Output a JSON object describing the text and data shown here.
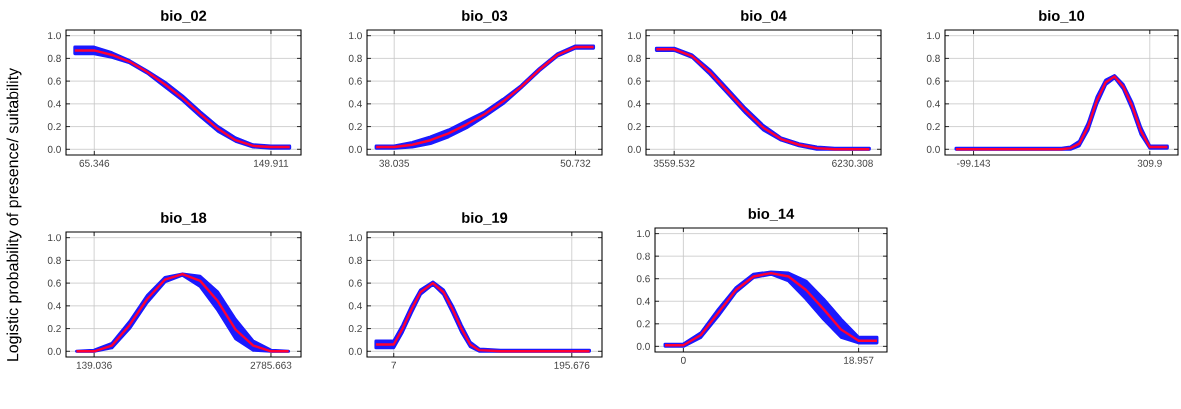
{
  "chart_data": [
    {
      "type": "line",
      "title": "bio_02",
      "ylabel": "Logistic probability of presence/ suitability",
      "xlim": [
        51.8,
        164.3
      ],
      "xticks": [
        65.346,
        149.911
      ],
      "ylim": [
        -0.05,
        1.05
      ],
      "yticks": [
        {
          "value": 0,
          "label": "0.0"
        },
        {
          "value": 0.2,
          "label": "0.2"
        },
        {
          "value": 0.4,
          "label": "0.4"
        },
        {
          "value": 0.6,
          "label": "0.6"
        },
        {
          "value": 0.8,
          "label": "0.8"
        },
        {
          "value": 1,
          "label": "1.0"
        }
      ],
      "grid": true,
      "series": [
        {
          "color": "#ff0033",
          "x": [
            56.0,
            65.3,
            73.8,
            82.3,
            90.7,
            99.2,
            107.6,
            116.1,
            124.5,
            133.0,
            141.4,
            149.9,
            158.9
          ],
          "values": [
            0.87,
            0.87,
            0.83,
            0.77,
            0.68,
            0.57,
            0.45,
            0.31,
            0.18,
            0.08,
            0.03,
            0.02,
            0.02
          ],
          "lower": [
            0.84,
            0.84,
            0.81,
            0.76,
            0.67,
            0.55,
            0.43,
            0.29,
            0.16,
            0.07,
            0.02,
            0.01,
            0.01
          ],
          "upper": [
            0.9,
            0.9,
            0.85,
            0.78,
            0.69,
            0.59,
            0.47,
            0.33,
            0.2,
            0.1,
            0.04,
            0.03,
            0.03
          ]
        }
      ]
    },
    {
      "type": "line",
      "title": "bio_03",
      "xlim": [
        36.13,
        52.59
      ],
      "xticks": [
        38.035,
        50.732
      ],
      "ylim": [
        -0.05,
        1.05
      ],
      "yticks": [
        {
          "value": 0,
          "label": "0.0"
        },
        {
          "value": 0.2,
          "label": "0.2"
        },
        {
          "value": 0.4,
          "label": "0.4"
        },
        {
          "value": 0.6,
          "label": "0.6"
        },
        {
          "value": 0.8,
          "label": "0.8"
        },
        {
          "value": 1,
          "label": "1.0"
        }
      ],
      "grid": true,
      "series": [
        {
          "color": "#ff0033",
          "x": [
            36.765,
            38.035,
            39.305,
            40.574,
            41.844,
            43.114,
            44.384,
            45.653,
            46.923,
            48.193,
            49.462,
            50.732,
            52.002
          ],
          "values": [
            0.02,
            0.02,
            0.04,
            0.08,
            0.14,
            0.22,
            0.31,
            0.42,
            0.55,
            0.7,
            0.83,
            0.9,
            0.9
          ],
          "lower": [
            0.01,
            0.01,
            0.02,
            0.05,
            0.11,
            0.19,
            0.29,
            0.4,
            0.54,
            0.69,
            0.82,
            0.89,
            0.89
          ],
          "upper": [
            0.03,
            0.03,
            0.06,
            0.11,
            0.17,
            0.25,
            0.33,
            0.44,
            0.56,
            0.71,
            0.84,
            0.91,
            0.91
          ]
        }
      ]
    },
    {
      "type": "line",
      "title": "bio_04",
      "xlim": [
        3137.5,
        6657.6
      ],
      "xticks": [
        3559.532,
        6230.308
      ],
      "ylim": [
        -0.05,
        1.05
      ],
      "yticks": [
        {
          "value": 0,
          "label": "0.0"
        },
        {
          "value": 0.2,
          "label": "0.2"
        },
        {
          "value": 0.4,
          "label": "0.4"
        },
        {
          "value": 0.6,
          "label": "0.6"
        },
        {
          "value": 0.8,
          "label": "0.8"
        },
        {
          "value": 1,
          "label": "1.0"
        }
      ],
      "grid": true,
      "series": [
        {
          "color": "#ff0033",
          "x": [
            3292.5,
            3559.5,
            3826.6,
            4093.7,
            4360.8,
            4627.8,
            4894.9,
            5162.0,
            5429.1,
            5696.2,
            5963.2,
            6230.3,
            6484.0
          ],
          "values": [
            0.88,
            0.88,
            0.82,
            0.68,
            0.51,
            0.34,
            0.19,
            0.09,
            0.04,
            0.01,
            0,
            0,
            0
          ],
          "lower": [
            0.87,
            0.87,
            0.81,
            0.66,
            0.49,
            0.32,
            0.17,
            0.08,
            0.03,
            0,
            0,
            0,
            0
          ],
          "upper": [
            0.89,
            0.89,
            0.83,
            0.7,
            0.53,
            0.36,
            0.21,
            0.1,
            0.05,
            0.02,
            0.01,
            0.01,
            0.01
          ]
        }
      ]
    },
    {
      "type": "line",
      "title": "bio_10",
      "xlim": [
        -165.4,
        375.4
      ],
      "xticks": [
        -99.143,
        309.9
      ],
      "ylim": [
        -0.05,
        1.05
      ],
      "yticks": [
        {
          "value": 0,
          "label": "0.0"
        },
        {
          "value": 0.2,
          "label": "0.2"
        },
        {
          "value": 0.4,
          "label": "0.4"
        },
        {
          "value": 0.6,
          "label": "0.6"
        },
        {
          "value": 0.8,
          "label": "0.8"
        },
        {
          "value": 1,
          "label": "1.0"
        }
      ],
      "grid": true,
      "series": [
        {
          "color": "#ff0033",
          "x": [
            -140.0,
            -17.3,
            105.4,
            125.8,
            146.3,
            166.7,
            187.2,
            207.6,
            228.1,
            248.5,
            269.0,
            289.4,
            309.9,
            350.8
          ],
          "values": [
            0,
            0,
            0,
            0.01,
            0.05,
            0.2,
            0.43,
            0.59,
            0.64,
            0.55,
            0.38,
            0.16,
            0.02,
            0.02
          ],
          "lower": [
            0,
            0,
            0,
            0,
            0.03,
            0.17,
            0.4,
            0.57,
            0.63,
            0.53,
            0.35,
            0.13,
            0.01,
            0.01
          ],
          "upper": [
            0.01,
            0.01,
            0.01,
            0.02,
            0.07,
            0.23,
            0.46,
            0.61,
            0.65,
            0.57,
            0.41,
            0.19,
            0.03,
            0.03
          ]
        }
      ]
    },
    {
      "type": "line",
      "title": "bio_18",
      "xlim": [
        -281.8,
        3235.6
      ],
      "xticks": [
        139.036,
        2785.663
      ],
      "ylim": [
        -0.05,
        1.05
      ],
      "yticks": [
        {
          "value": 0,
          "label": "0.0"
        },
        {
          "value": 0.2,
          "label": "0.2"
        },
        {
          "value": 0.4,
          "label": "0.4"
        },
        {
          "value": 0.6,
          "label": "0.6"
        },
        {
          "value": 0.8,
          "label": "0.8"
        },
        {
          "value": 1,
          "label": "1.0"
        }
      ],
      "grid": true,
      "series": [
        {
          "color": "#ff0033",
          "x": [
            -125.6,
            139.0,
            403.7,
            668.4,
            933.0,
            1197.7,
            1462.3,
            1727.0,
            1991.7,
            2256.3,
            2521.0,
            2785.7,
            3050.3
          ],
          "values": [
            0,
            0,
            0.05,
            0.23,
            0.46,
            0.63,
            0.68,
            0.62,
            0.44,
            0.19,
            0.05,
            0,
            0
          ],
          "lower": [
            0,
            0,
            0.03,
            0.2,
            0.43,
            0.61,
            0.67,
            0.57,
            0.36,
            0.11,
            0.01,
            0,
            0
          ],
          "upper": [
            0,
            0.01,
            0.07,
            0.26,
            0.49,
            0.65,
            0.68,
            0.66,
            0.52,
            0.28,
            0.09,
            0.01,
            0
          ]
        }
      ]
    },
    {
      "type": "line",
      "title": "bio_19",
      "xlim": [
        -21.3,
        227.7
      ],
      "xticks": [
        7,
        195.676
      ],
      "ylim": [
        -0.05,
        1.05
      ],
      "yticks": [
        {
          "value": 0,
          "label": "0.0"
        },
        {
          "value": 0.2,
          "label": "0.2"
        },
        {
          "value": 0.4,
          "label": "0.4"
        },
        {
          "value": 0.6,
          "label": "0.6"
        },
        {
          "value": 0.8,
          "label": "0.8"
        },
        {
          "value": 1,
          "label": "1.0"
        }
      ],
      "grid": true,
      "series": [
        {
          "color": "#ff0033",
          "x": [
            -11.9,
            7,
            16.4,
            25.9,
            35.3,
            48.5,
            59.8,
            69.3,
            78.7,
            88.1,
            97.6,
            120.2,
            157.9,
            195.7,
            214.5
          ],
          "values": [
            0.06,
            0.06,
            0.2,
            0.37,
            0.52,
            0.6,
            0.52,
            0.37,
            0.2,
            0.06,
            0.01,
            0,
            0,
            0,
            0
          ],
          "lower": [
            0.03,
            0.03,
            0.17,
            0.34,
            0.5,
            0.59,
            0.5,
            0.34,
            0.17,
            0.04,
            0,
            0,
            0,
            0,
            0
          ],
          "upper": [
            0.09,
            0.09,
            0.23,
            0.4,
            0.54,
            0.61,
            0.54,
            0.4,
            0.23,
            0.08,
            0.02,
            0.01,
            0.01,
            0.01,
            0.01
          ]
        }
      ]
    },
    {
      "type": "line",
      "title": "bio_14",
      "xlim": [
        -3.07,
        22.03
      ],
      "xticks": [
        0,
        18.957
      ],
      "ylim": [
        -0.05,
        1.05
      ],
      "yticks": [
        {
          "value": 0,
          "label": "0.0"
        },
        {
          "value": 0.2,
          "label": "0.2"
        },
        {
          "value": 0.4,
          "label": "0.4"
        },
        {
          "value": 0.6,
          "label": "0.6"
        },
        {
          "value": 0.8,
          "label": "0.8"
        },
        {
          "value": 1,
          "label": "1.0"
        }
      ],
      "grid": true,
      "series": [
        {
          "color": "#ff0033",
          "x": [
            -1.99,
            0,
            1.896,
            3.791,
            5.687,
            7.583,
            9.479,
            11.374,
            13.27,
            15.166,
            17.061,
            18.957,
            20.947
          ],
          "values": [
            0.01,
            0.01,
            0.1,
            0.3,
            0.5,
            0.62,
            0.65,
            0.62,
            0.5,
            0.33,
            0.15,
            0.05,
            0.05
          ],
          "lower": [
            0,
            0,
            0.08,
            0.27,
            0.48,
            0.61,
            0.64,
            0.58,
            0.42,
            0.24,
            0.08,
            0.03,
            0.03
          ],
          "upper": [
            0.02,
            0.02,
            0.12,
            0.33,
            0.52,
            0.64,
            0.66,
            0.65,
            0.58,
            0.42,
            0.24,
            0.08,
            0.08
          ]
        }
      ]
    }
  ]
}
